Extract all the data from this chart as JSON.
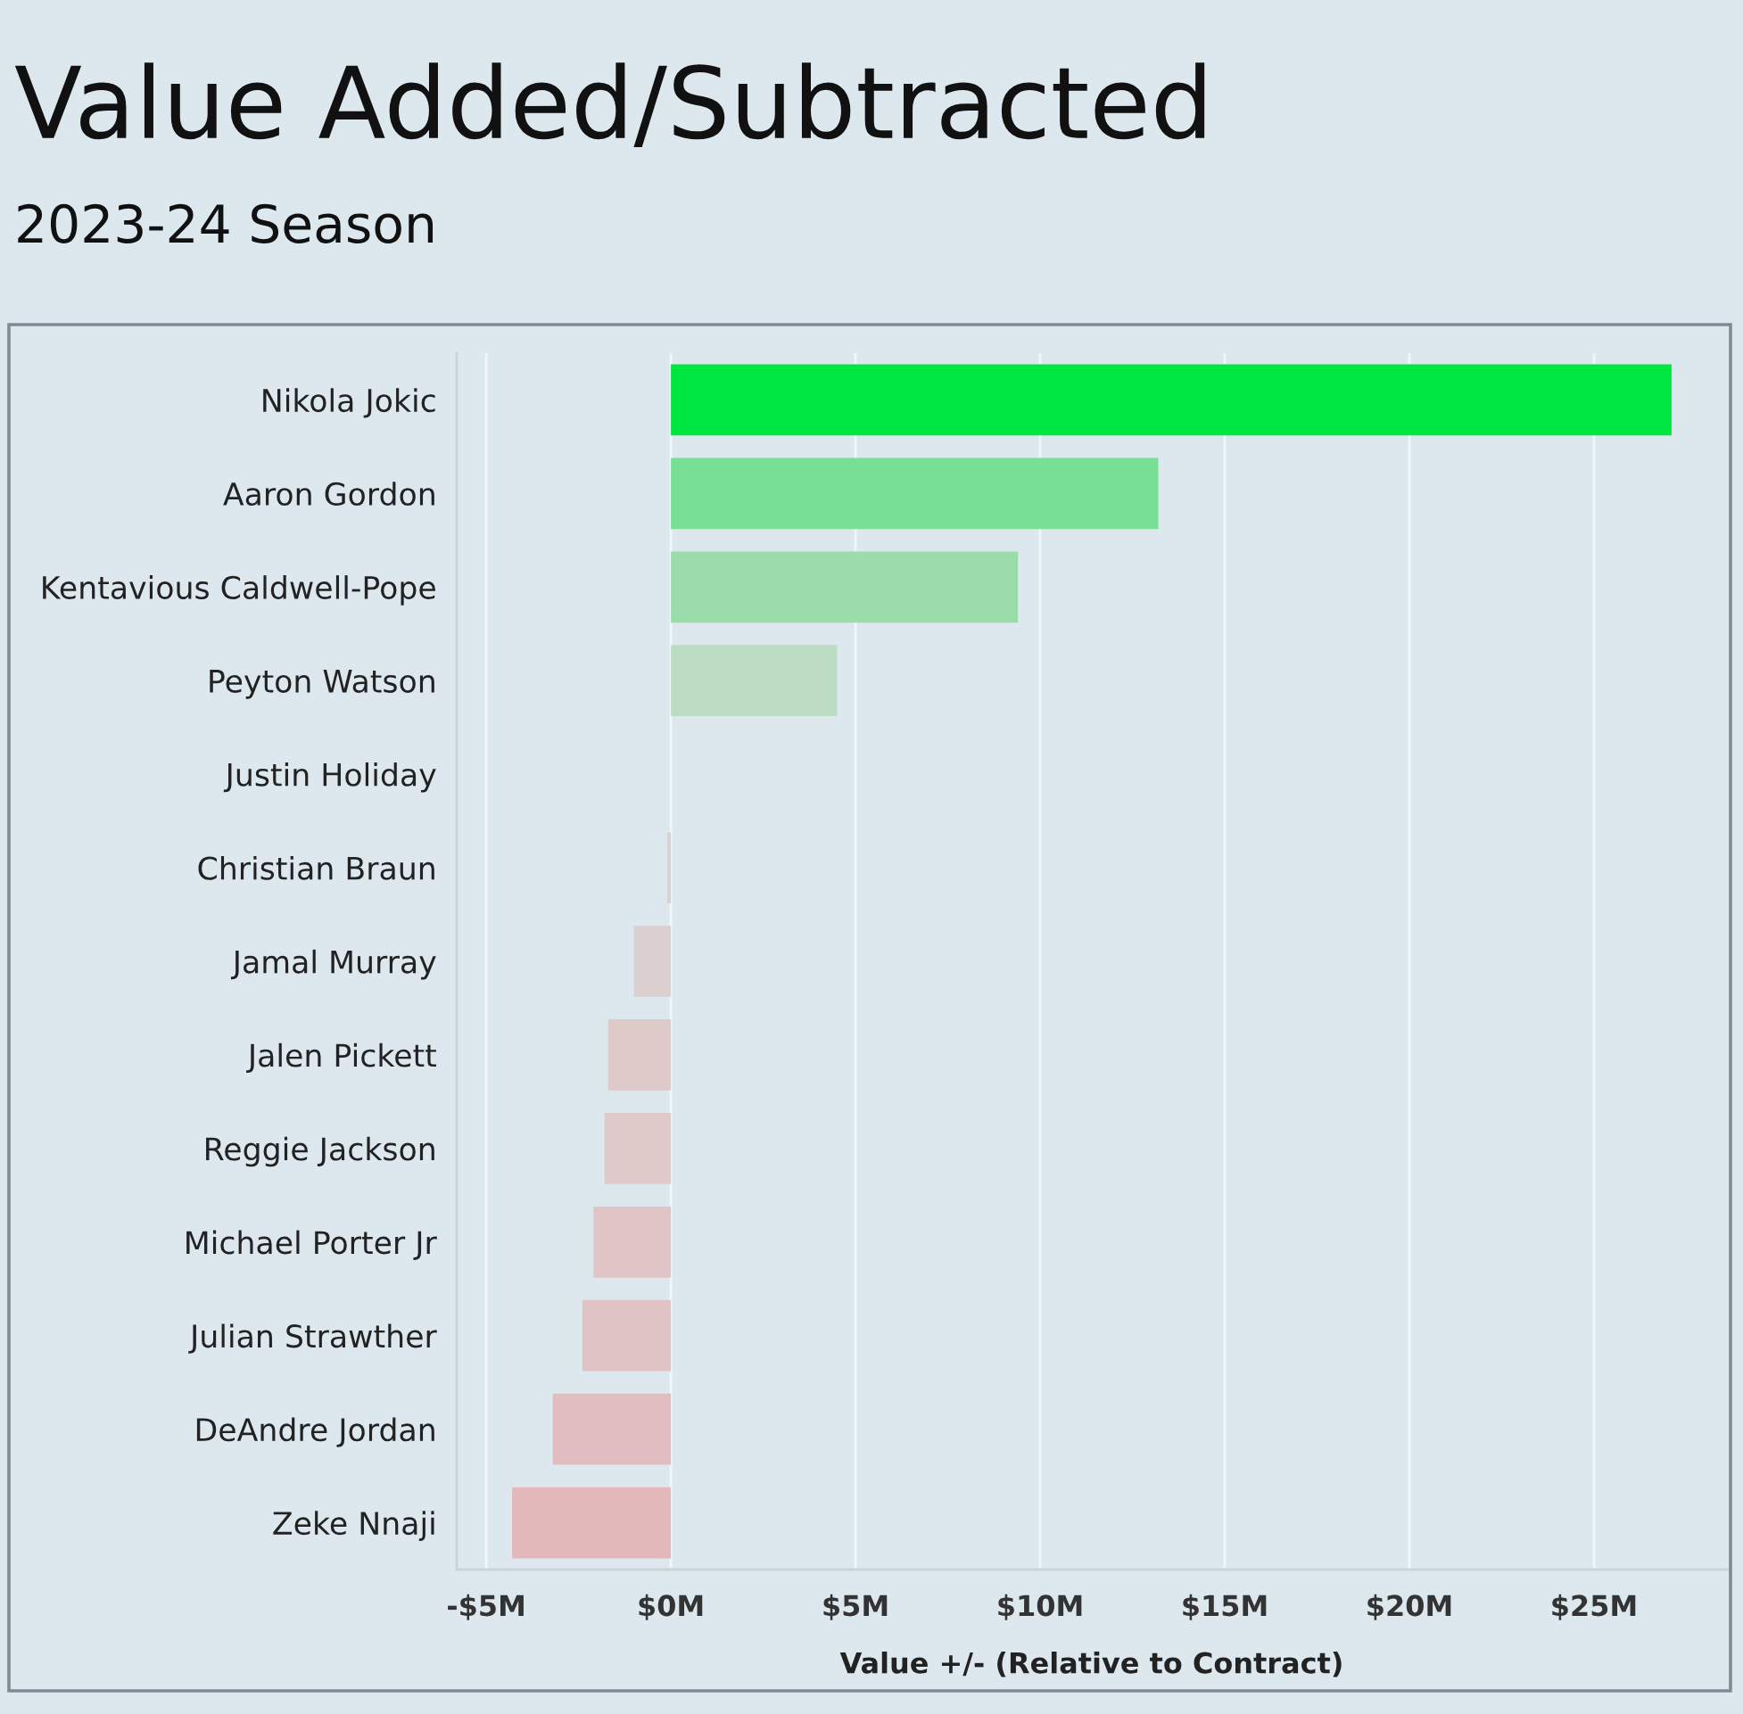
{
  "chart_data": {
    "type": "bar",
    "orientation": "horizontal",
    "title": "Value Added/Subtracted",
    "subtitle": "2023-24 Season",
    "xlabel": "Value +/- (Relative to Contract)",
    "categories": [
      "Nikola Jokic",
      "Aaron Gordon",
      "Kentavious Caldwell-Pope",
      "Peyton Watson",
      "Justin Holiday",
      "Christian Braun",
      "Jamal Murray",
      "Jalen Pickett",
      "Reggie Jackson",
      "Michael Porter Jr",
      "Julian Strawther",
      "DeAndre Jordan",
      "Zeke Nnaji"
    ],
    "values": [
      27.1,
      13.2,
      9.4,
      4.5,
      0,
      -0.1,
      -1.0,
      -1.7,
      -1.8,
      -2.1,
      -2.4,
      -3.2,
      -4.3
    ],
    "colors": [
      "#00e640",
      "#77e095",
      "#9adcaa",
      "#bcdcc4",
      "#cfdccf",
      "#d8d3d3",
      "#dccfcf",
      "#dfcaca",
      "#dfc9c9",
      "#e0c5c6",
      "#e0c3c4",
      "#e2bdbf",
      "#e3b8ba"
    ],
    "xlim": [
      -5.8,
      28.6
    ],
    "xticks": [
      {
        "value": -5,
        "label": "-$5M"
      },
      {
        "value": 0,
        "label": "$0M"
      },
      {
        "value": 5,
        "label": "$5M"
      },
      {
        "value": 10,
        "label": "$10M"
      },
      {
        "value": 15,
        "label": "$15M"
      },
      {
        "value": 20,
        "label": "$20M"
      },
      {
        "value": 25,
        "label": "$25M"
      }
    ],
    "grid": "x"
  }
}
